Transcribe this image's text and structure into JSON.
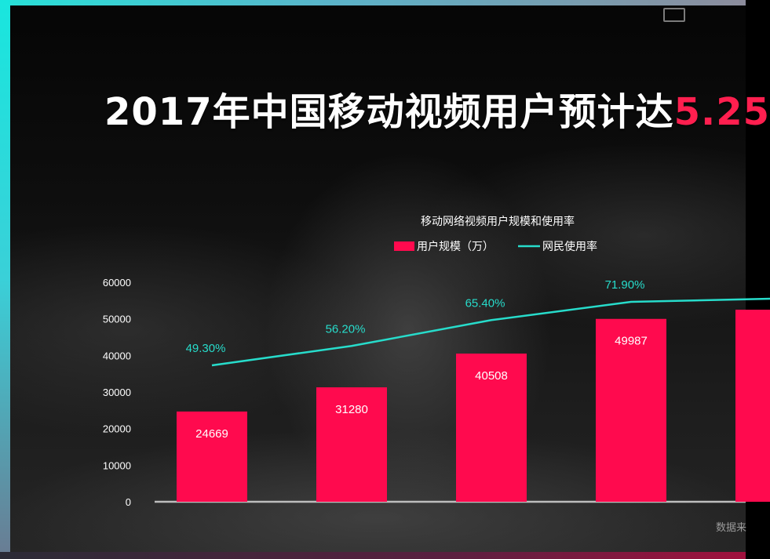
{
  "headline": {
    "main": "2017年中国移动视频用户预计达",
    "accent": "5.25"
  },
  "source_label": "数据来",
  "colors": {
    "bar": "#ff0a4e",
    "line": "#27dccb",
    "text": "#ffffff",
    "accent": "#ff1f4f"
  },
  "chart_data": {
    "type": "bar",
    "title": "移动网络视频用户规模和使用率",
    "legend_position": "top",
    "categories": [
      "",
      "",
      "",
      "",
      ""
    ],
    "series": [
      {
        "name": "用户规模（万）",
        "type": "bar",
        "values": [
          24669,
          31280,
          40508,
          49987,
          52500
        ],
        "labels": [
          "24669",
          "31280",
          "40508",
          "49987",
          ""
        ]
      },
      {
        "name": "网民使用率",
        "type": "line",
        "values": [
          49.3,
          56.2,
          65.4,
          71.9,
          73.0
        ],
        "labels": [
          "49.30%",
          "56.20%",
          "65.40%",
          "71.90%",
          ""
        ]
      }
    ],
    "y_axis": {
      "min": 0,
      "max": 60000,
      "ticks": [
        "0",
        "10000",
        "20000",
        "30000",
        "40000",
        "50000",
        "60000"
      ]
    },
    "grid": false
  }
}
